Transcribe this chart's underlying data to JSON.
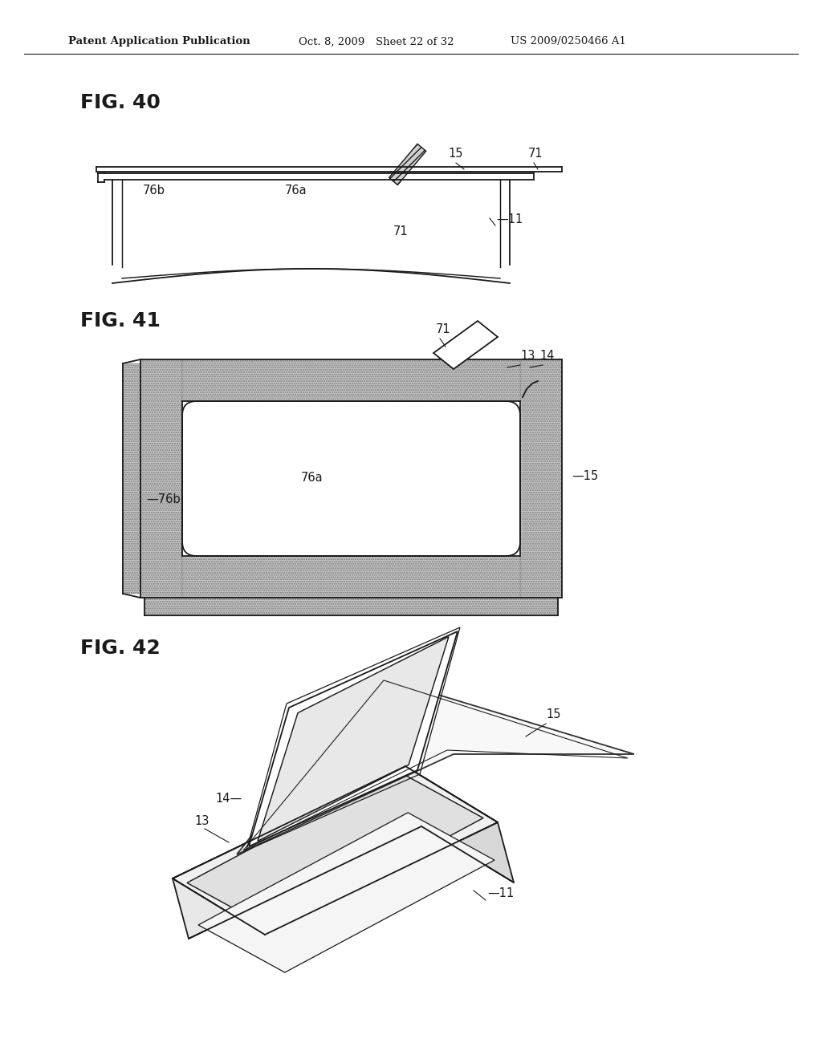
{
  "bg_color": "#ffffff",
  "header_text": "Patent Application Publication",
  "header_date": "Oct. 8, 2009",
  "header_sheet": "Sheet 22 of 32",
  "header_patent": "US 2009/0250466 A1",
  "fig40_label": "FIG. 40",
  "fig41_label": "FIG. 41",
  "fig42_label": "FIG. 42",
  "line_color": "#1a1a1a",
  "label_fontsize": 10.5,
  "title_fontsize": 18
}
